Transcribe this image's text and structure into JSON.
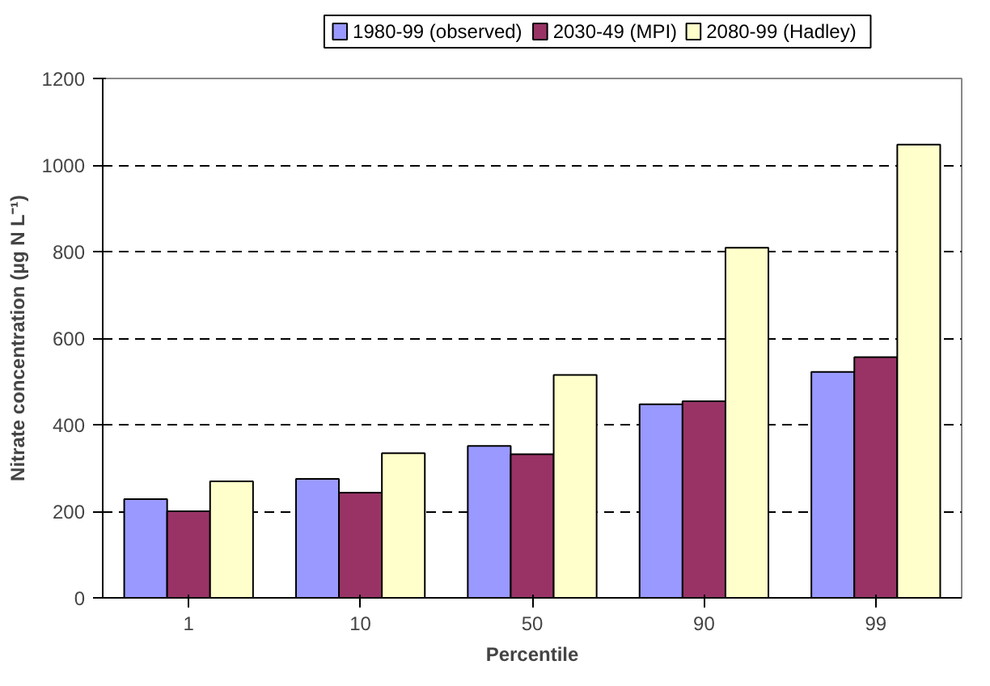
{
  "chart_data": {
    "type": "bar",
    "xlabel": "Percentile",
    "ylabel": "Nitrate concentration (µg N L⁻¹)",
    "categories": [
      "1",
      "10",
      "50",
      "90",
      "99"
    ],
    "series": [
      {
        "name": "1980-99 (observed)",
        "color": "#9999ff",
        "values": [
          228,
          275,
          351,
          447,
          522
        ]
      },
      {
        "name": "2030-49 (MPI)",
        "color": "#993366",
        "values": [
          200,
          243,
          332,
          454,
          556
        ]
      },
      {
        "name": "2080-99 (Hadley)",
        "color": "#ffffcc",
        "values": [
          269,
          334,
          515,
          809,
          1047
        ]
      }
    ],
    "ylim": [
      0,
      1200
    ],
    "yticks": [
      0,
      200,
      400,
      600,
      800,
      1000,
      1200
    ],
    "grid": "y",
    "legend": "top"
  }
}
